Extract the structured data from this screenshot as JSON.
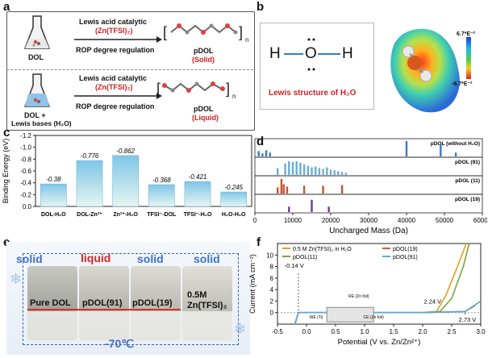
{
  "panel_a": {
    "label": "a",
    "row1": {
      "flask_label": "DOL",
      "catalyst_line": "Lewis acid catalytic",
      "catalyst_formula": "(Zn(TFSI)₂)",
      "regulation": "ROP degree regulation",
      "product_name": "pDOL",
      "product_state": "(Solid)"
    },
    "row2": {
      "flask_label_1": "DOL +",
      "flask_label_2": "Lewis bases (H₂O)",
      "catalyst_line": "Lewis acid catalytic",
      "catalyst_formula": "(Zn(TFSI)₂)",
      "regulation": "ROP degree regulation",
      "product_name": "pDOL",
      "product_state": "(Liquid)"
    }
  },
  "panel_b": {
    "label": "b",
    "lewis_caption": "Lewis structure of H₂O",
    "h_left": "H",
    "o_center": "O",
    "h_right": "H",
    "scale_max": "6.7*E⁻²",
    "scale_min": "-6.7*E⁻²"
  },
  "panel_c": {
    "label": "c",
    "chart_data": {
      "type": "bar",
      "title": "",
      "ylabel": "Binding Energy (eV)",
      "xlabel": "",
      "categories": [
        "DOL-H₂O",
        "DOL-Zn²⁺",
        "Zn²⁺-H₂O",
        "TFSI⁻-DOL",
        "TFSI⁻-H₂O",
        "H₂O-H₂O"
      ],
      "values": [
        -0.38,
        -0.776,
        -0.862,
        -0.368,
        -0.421,
        -0.245
      ],
      "value_labels": [
        "-0.38",
        "-0.776",
        "-0.862",
        "-0.368",
        "-0.421",
        "-0.245"
      ],
      "ylim": [
        0.0,
        -1.2
      ],
      "yticks": [
        "0.0",
        "-0.2",
        "-0.4",
        "-0.6",
        "-0.8",
        "-1.0",
        "-1.2"
      ]
    }
  },
  "panel_d": {
    "label": "d",
    "chart_data": {
      "type": "bar",
      "xlabel": "Uncharged Mass (Da)",
      "xlim": [
        0,
        60000
      ],
      "xticks": [
        "0",
        "10000",
        "20000",
        "30000",
        "40000",
        "50000",
        "60000"
      ],
      "series": [
        {
          "name": "pDOL (without H₂O)",
          "color": "#3c78c8",
          "peaks": [
            [
              1000,
              0.35
            ],
            [
              2000,
              0.2
            ],
            [
              3000,
              0.4
            ],
            [
              4000,
              0.25
            ],
            [
              40000,
              1.0
            ],
            [
              49000,
              0.8
            ],
            [
              53000,
              0.25
            ]
          ]
        },
        {
          "name": "pDOL (91)",
          "color": "#6aaed6",
          "peaks": [
            [
              6000,
              0.45
            ],
            [
              8000,
              0.75
            ],
            [
              9000,
              0.9
            ],
            [
              10000,
              0.85
            ],
            [
              11000,
              0.9
            ],
            [
              12000,
              0.8
            ],
            [
              13000,
              0.7
            ],
            [
              14000,
              0.6
            ],
            [
              15000,
              0.5
            ],
            [
              16000,
              0.55
            ],
            [
              17000,
              0.45
            ],
            [
              18000,
              0.4
            ],
            [
              19000,
              0.5
            ],
            [
              20000,
              0.35
            ],
            [
              21000,
              0.3
            ],
            [
              22000,
              0.25
            ],
            [
              23000,
              0.2
            ],
            [
              24000,
              0.15
            ]
          ]
        },
        {
          "name": "pDOL (11)",
          "color": "#c8532a",
          "peaks": [
            [
              6000,
              0.4
            ],
            [
              7000,
              0.95
            ],
            [
              7600,
              0.6
            ],
            [
              8500,
              0.45
            ],
            [
              13000,
              0.5
            ],
            [
              18000,
              0.5
            ],
            [
              23000,
              0.55
            ]
          ]
        },
        {
          "name": "pDOL (19)",
          "color": "#6a3a99",
          "peaks": [
            [
              9000,
              0.35
            ],
            [
              15000,
              0.8
            ],
            [
              19500,
              0.35
            ]
          ]
        }
      ]
    }
  },
  "panel_e": {
    "label": "e",
    "states": [
      "solid",
      "liquid",
      "solid",
      "solid"
    ],
    "samples": [
      "Pure DOL",
      "pDOL(91)",
      "pDOL(19)",
      "0.5M Zn(TFSI)₂"
    ],
    "temperature": "-70℃"
  },
  "panel_f": {
    "label": "f",
    "chart_data": {
      "type": "line",
      "xlabel": "Potential (V vs. Zn/Zn²⁺)",
      "ylabel": "Current (mA cm⁻²)",
      "xlim": [
        -0.5,
        3.0
      ],
      "ylim": [
        -2,
        12
      ],
      "xticks": [
        "-0.5",
        "0.0",
        "0.5",
        "1.0",
        "1.5",
        "2.0",
        "2.5",
        "3.0"
      ],
      "yticks": [
        "0",
        "2",
        "4",
        "6",
        "8",
        "10"
      ],
      "annotations": [
        "-0.14 V",
        "2.24 V",
        "2.73 V"
      ],
      "inset_labels": [
        "RE (Zn foil)",
        "WE (Ti)",
        "CE (Zn foil)"
      ],
      "series": [
        {
          "name": "0.5 M Zn(TFSI)₂ in H₂O",
          "color": "#e0a020",
          "x": [
            -0.2,
            -0.14,
            0.0,
            1.0,
            2.0,
            2.24,
            2.4,
            2.6,
            2.75
          ],
          "y": [
            -2,
            0,
            0,
            0,
            0,
            0.2,
            3,
            8,
            12
          ]
        },
        {
          "name": "pDOL(11)",
          "color": "#7aa83a",
          "x": [
            -0.2,
            -0.14,
            0.0,
            1.0,
            2.0,
            2.3,
            2.5,
            2.7,
            2.8
          ],
          "y": [
            -2,
            0,
            0,
            0,
            0,
            0.2,
            2.5,
            8,
            12
          ]
        },
        {
          "name": "pDOL(19)",
          "color": "#d45a3a",
          "x": [
            -0.2,
            -0.14,
            0.0,
            1.0,
            2.0,
            2.73,
            2.9
          ],
          "y": [
            -2,
            0,
            0,
            0,
            0,
            0.2,
            1.2
          ]
        },
        {
          "name": "pDOL(91)",
          "color": "#5aaad0",
          "x": [
            -0.2,
            -0.14,
            0.0,
            1.0,
            2.0,
            2.73,
            3.0
          ],
          "y": [
            -2,
            0,
            0,
            0,
            0,
            0.2,
            2
          ]
        }
      ]
    }
  }
}
